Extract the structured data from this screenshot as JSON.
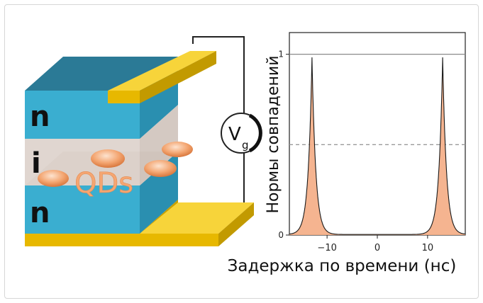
{
  "diagram": {
    "layer_labels": {
      "top": "n",
      "middle": "i",
      "bottom": "n"
    },
    "qd_label": "QDs",
    "gate_voltage": {
      "symbol": "V",
      "subscript": "g"
    },
    "colors": {
      "n_layer_side": "#3aaed0",
      "n_layer_top": "#2b7a96",
      "i_layer": "#d6cbc4",
      "electrode": "#f2c400",
      "qd": "#f3a46f",
      "qd_label": "#f3a46f"
    }
  },
  "chart_data": {
    "type": "area",
    "xlabel": "Задержка по времени (нс)",
    "ylabel": "Нормы совпадений",
    "xlim": [
      -17.5,
      17.5
    ],
    "ylim": [
      0,
      1.12
    ],
    "x_ticks": [
      -10,
      0,
      10
    ],
    "x_tick_labels": [
      "−10",
      "0",
      "10"
    ],
    "y_ticks": [
      0,
      1
    ],
    "y_tick_labels": [
      "0",
      "1"
    ],
    "reference_lines": [
      {
        "y": 1,
        "style": "solid"
      },
      {
        "y": 0.5,
        "style": "dashed"
      }
    ],
    "peaks": [
      {
        "center": -13.0,
        "height": 0.98
      },
      {
        "center": 13.0,
        "height": 0.98
      }
    ],
    "fill_color": "#f4b08a",
    "line_color": "#1a1a1a"
  }
}
